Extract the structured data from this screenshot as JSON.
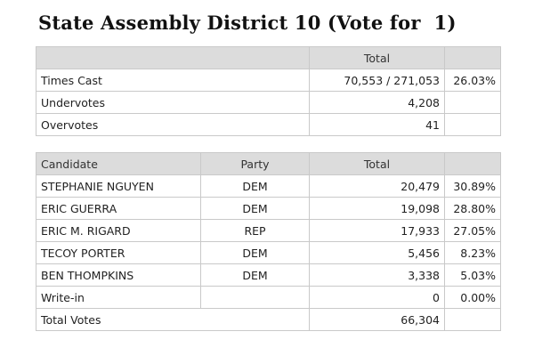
{
  "title": "State Assembly District 10 (Vote for  1)",
  "summary": {
    "total_header": "Total",
    "rows": [
      {
        "label": "Times Cast",
        "total": "70,553 / 271,053",
        "pct": "26.03%"
      },
      {
        "label": "Undervotes",
        "total": "4,208",
        "pct": ""
      },
      {
        "label": "Overvotes",
        "total": "41",
        "pct": ""
      }
    ]
  },
  "results": {
    "headers": {
      "candidate": "Candidate",
      "party": "Party",
      "total": "Total"
    },
    "rows": [
      {
        "candidate": "STEPHANIE NGUYEN",
        "party": "DEM",
        "total": "20,479",
        "pct": "30.89%"
      },
      {
        "candidate": "ERIC GUERRA",
        "party": "DEM",
        "total": "19,098",
        "pct": "28.80%"
      },
      {
        "candidate": "ERIC M. RIGARD",
        "party": "REP",
        "total": "17,933",
        "pct": "27.05%"
      },
      {
        "candidate": "TECOY PORTER",
        "party": "DEM",
        "total": "5,456",
        "pct": "8.23%"
      },
      {
        "candidate": "BEN THOMPKINS",
        "party": "DEM",
        "total": "3,338",
        "pct": "5.03%"
      },
      {
        "candidate": "Write-in",
        "party": "",
        "total": "0",
        "pct": "0.00%"
      }
    ],
    "total_votes": {
      "label": "Total Votes",
      "total": "66,304",
      "pct": ""
    }
  }
}
